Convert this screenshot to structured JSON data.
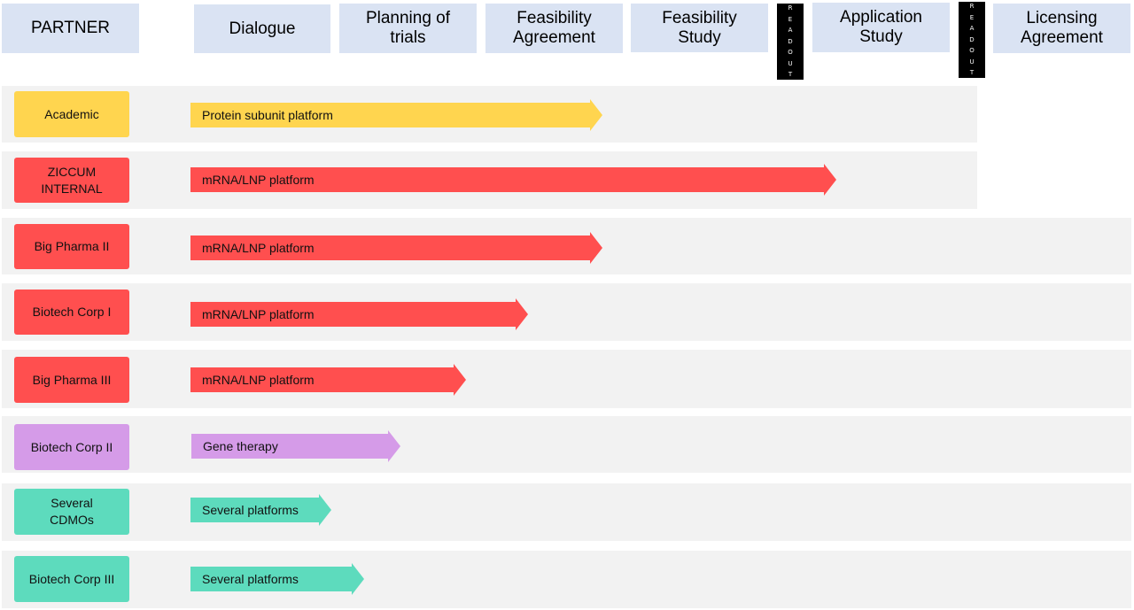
{
  "colors": {
    "header_bg": "#dae3f3",
    "band_bg": "#f2f2f2",
    "readout_bg": "#000000",
    "yellow": "#ffd54f",
    "red": "#ff4f4f",
    "purple": "#d59be8",
    "green": "#5ddbbd"
  },
  "headers": {
    "partner": "PARTNER",
    "dialogue": "Dialogue",
    "planning": "Planning of\ntrials",
    "feasibility_agreement": "Feasibility\nAgreement",
    "feasibility_study": "Feasibility\nStudy",
    "application_study": "Application\nStudy",
    "licensing_agreement": "Licensing\nAgreement"
  },
  "readouts": [
    "READOUT",
    "READOUT"
  ],
  "rows": [
    {
      "partner": "Academic",
      "platform": "Protein subunit platform",
      "color": "#ffd54f"
    },
    {
      "partner": "ZICCUM\nINTERNAL",
      "platform": "mRNA/LNP platform",
      "color": "#ff4f4f"
    },
    {
      "partner": "Big Pharma II",
      "platform": "mRNA/LNP platform",
      "color": "#ff4f4f"
    },
    {
      "partner": "Biotech Corp I",
      "platform": "mRNA/LNP platform",
      "color": "#ff4f4f"
    },
    {
      "partner": "Big Pharma III",
      "platform": "mRNA/LNP platform",
      "color": "#ff4f4f"
    },
    {
      "partner": "Biotech Corp II",
      "platform": "Gene therapy",
      "color": "#d59be8"
    },
    {
      "partner": "Several\nCDMOs",
      "platform": "Several platforms",
      "color": "#5ddbbd"
    },
    {
      "partner": "Biotech Corp III",
      "platform": "Several platforms",
      "color": "#5ddbbd"
    }
  ]
}
